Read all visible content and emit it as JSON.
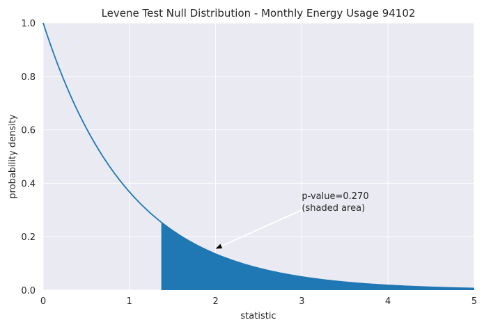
{
  "chart_data": {
    "type": "area",
    "title": "Levene Test Null Distribution - Monthly Energy Usage 94102",
    "xlabel": "statistic",
    "ylabel": "probability density",
    "xlim": [
      0,
      5
    ],
    "ylim": [
      0,
      1.0
    ],
    "x_ticks": [
      "0",
      "1",
      "2",
      "3",
      "4",
      "5"
    ],
    "y_ticks": [
      "0.0",
      "0.2",
      "0.4",
      "0.6",
      "0.8",
      "1.0"
    ],
    "grid": true,
    "series": [
      {
        "type": "line",
        "x": [
          0,
          0.25,
          0.5,
          0.75,
          1.0,
          1.25,
          1.5,
          1.75,
          2.0,
          2.25,
          2.5,
          2.75,
          3.0,
          3.25,
          3.5,
          3.75,
          4.0,
          4.25,
          4.5,
          4.75,
          5.0
        ],
        "y": [
          1.0,
          0.779,
          0.607,
          0.472,
          0.368,
          0.287,
          0.223,
          0.174,
          0.135,
          0.105,
          0.082,
          0.064,
          0.05,
          0.039,
          0.03,
          0.024,
          0.018,
          0.014,
          0.011,
          0.009,
          0.007
        ],
        "color": "#1f77b4"
      }
    ],
    "shaded_region": {
      "x_start": 1.37,
      "x_end": 5.0,
      "color": "#1f77b4"
    },
    "annotation": {
      "lines": [
        "p-value=0.270",
        "(shaded area)"
      ],
      "text_x": 3.0,
      "text_y": 0.3,
      "arrow_x": 2.0,
      "arrow_y": 0.155
    },
    "colors": {
      "background": "#eaeaf2",
      "grid": "#ffffff",
      "line": "#1f77b4",
      "arrow": "#ffffff"
    }
  }
}
